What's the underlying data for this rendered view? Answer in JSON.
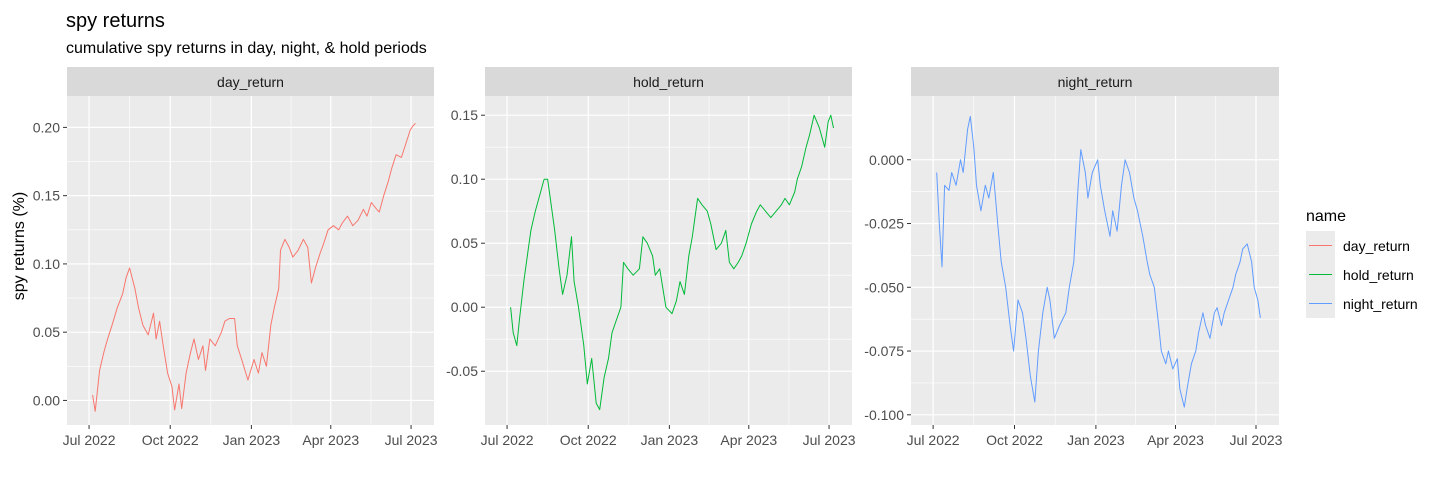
{
  "chart_data": {
    "type": "line",
    "title": "spy returns",
    "subtitle": "cumulative spy returns in day, night, & hold periods",
    "ylabel": "spy returns (%)",
    "xlabel": "",
    "x_tick_labels": [
      "Jul 2022",
      "Oct 2022",
      "Jan 2023",
      "Apr 2023",
      "Jul 2023"
    ],
    "x_tick_dates": [
      "2022-07-01",
      "2022-10-01",
      "2023-01-01",
      "2023-04-01",
      "2023-07-01"
    ],
    "x_range": [
      "2022-06-06",
      "2023-07-27"
    ],
    "grid": true,
    "legend": {
      "title": "name",
      "placement": "right",
      "entries": [
        "day_return",
        "hold_return",
        "night_return"
      ]
    },
    "colors": {
      "day_return": "#F8766D",
      "hold_return": "#00BA38",
      "night_return": "#619CFF",
      "panel_bg": "#EBEBEB",
      "strip_bg": "#D9D9D9",
      "grid": "#FFFFFF"
    },
    "panels": [
      {
        "strip": "day_return",
        "series_name": "day_return",
        "ylim": [
          -0.018,
          0.223
        ],
        "y_ticks": [
          0.0,
          0.05,
          0.1,
          0.15,
          0.2
        ],
        "y_tick_labels": [
          "0.00",
          "0.05",
          "0.10",
          "0.15",
          "0.20"
        ],
        "points": [
          [
            "2022-07-05",
            0.004
          ],
          [
            "2022-07-08",
            -0.008
          ],
          [
            "2022-07-13",
            0.022
          ],
          [
            "2022-07-18",
            0.036
          ],
          [
            "2022-07-22",
            0.045
          ],
          [
            "2022-07-27",
            0.055
          ],
          [
            "2022-08-02",
            0.068
          ],
          [
            "2022-08-08",
            0.078
          ],
          [
            "2022-08-12",
            0.09
          ],
          [
            "2022-08-16",
            0.097
          ],
          [
            "2022-08-22",
            0.082
          ],
          [
            "2022-08-26",
            0.068
          ],
          [
            "2022-08-31",
            0.055
          ],
          [
            "2022-09-06",
            0.048
          ],
          [
            "2022-09-12",
            0.064
          ],
          [
            "2022-09-15",
            0.045
          ],
          [
            "2022-09-19",
            0.058
          ],
          [
            "2022-09-23",
            0.04
          ],
          [
            "2022-09-28",
            0.02
          ],
          [
            "2022-10-03",
            0.01
          ],
          [
            "2022-10-06",
            -0.007
          ],
          [
            "2022-10-11",
            0.012
          ],
          [
            "2022-10-14",
            -0.006
          ],
          [
            "2022-10-19",
            0.02
          ],
          [
            "2022-10-24",
            0.035
          ],
          [
            "2022-10-28",
            0.045
          ],
          [
            "2022-11-02",
            0.03
          ],
          [
            "2022-11-07",
            0.04
          ],
          [
            "2022-11-10",
            0.022
          ],
          [
            "2022-11-15",
            0.045
          ],
          [
            "2022-11-21",
            0.04
          ],
          [
            "2022-11-28",
            0.05
          ],
          [
            "2022-12-02",
            0.058
          ],
          [
            "2022-12-07",
            0.06
          ],
          [
            "2022-12-13",
            0.06
          ],
          [
            "2022-12-16",
            0.04
          ],
          [
            "2022-12-21",
            0.03
          ],
          [
            "2022-12-28",
            0.015
          ],
          [
            "2023-01-04",
            0.03
          ],
          [
            "2023-01-09",
            0.02
          ],
          [
            "2023-01-13",
            0.035
          ],
          [
            "2023-01-18",
            0.025
          ],
          [
            "2023-01-23",
            0.055
          ],
          [
            "2023-01-27",
            0.068
          ],
          [
            "2023-02-01",
            0.082
          ],
          [
            "2023-02-03",
            0.11
          ],
          [
            "2023-02-08",
            0.118
          ],
          [
            "2023-02-13",
            0.112
          ],
          [
            "2023-02-17",
            0.105
          ],
          [
            "2023-02-23",
            0.11
          ],
          [
            "2023-03-01",
            0.118
          ],
          [
            "2023-03-06",
            0.112
          ],
          [
            "2023-03-10",
            0.086
          ],
          [
            "2023-03-15",
            0.098
          ],
          [
            "2023-03-20",
            0.108
          ],
          [
            "2023-03-24",
            0.115
          ],
          [
            "2023-03-29",
            0.125
          ],
          [
            "2023-04-04",
            0.128
          ],
          [
            "2023-04-10",
            0.125
          ],
          [
            "2023-04-14",
            0.13
          ],
          [
            "2023-04-20",
            0.135
          ],
          [
            "2023-04-26",
            0.128
          ],
          [
            "2023-05-02",
            0.132
          ],
          [
            "2023-05-08",
            0.14
          ],
          [
            "2023-05-12",
            0.135
          ],
          [
            "2023-05-17",
            0.145
          ],
          [
            "2023-05-23",
            0.14
          ],
          [
            "2023-05-26",
            0.138
          ],
          [
            "2023-05-31",
            0.15
          ],
          [
            "2023-06-05",
            0.16
          ],
          [
            "2023-06-09",
            0.17
          ],
          [
            "2023-06-14",
            0.18
          ],
          [
            "2023-06-20",
            0.178
          ],
          [
            "2023-06-26",
            0.19
          ],
          [
            "2023-06-30",
            0.198
          ],
          [
            "2023-07-03",
            0.201
          ],
          [
            "2023-07-06",
            0.203
          ]
        ]
      },
      {
        "strip": "hold_return",
        "series_name": "hold_return",
        "ylim": [
          -0.092,
          0.165
        ],
        "y_ticks": [
          -0.05,
          0.0,
          0.05,
          0.1,
          0.15
        ],
        "y_tick_labels": [
          "-0.05",
          "0.00",
          "0.05",
          "0.10",
          "0.15"
        ],
        "points": [
          [
            "2022-07-05",
            0.0
          ],
          [
            "2022-07-08",
            -0.02
          ],
          [
            "2022-07-12",
            -0.03
          ],
          [
            "2022-07-15",
            -0.01
          ],
          [
            "2022-07-20",
            0.02
          ],
          [
            "2022-07-25",
            0.045
          ],
          [
            "2022-07-28",
            0.06
          ],
          [
            "2022-08-02",
            0.075
          ],
          [
            "2022-08-08",
            0.09
          ],
          [
            "2022-08-12",
            0.1
          ],
          [
            "2022-08-16",
            0.1
          ],
          [
            "2022-08-19",
            0.085
          ],
          [
            "2022-08-24",
            0.06
          ],
          [
            "2022-08-29",
            0.03
          ],
          [
            "2022-09-02",
            0.01
          ],
          [
            "2022-09-07",
            0.025
          ],
          [
            "2022-09-12",
            0.055
          ],
          [
            "2022-09-15",
            0.02
          ],
          [
            "2022-09-20",
            0.0
          ],
          [
            "2022-09-26",
            -0.03
          ],
          [
            "2022-09-30",
            -0.06
          ],
          [
            "2022-10-05",
            -0.04
          ],
          [
            "2022-10-10",
            -0.075
          ],
          [
            "2022-10-14",
            -0.08
          ],
          [
            "2022-10-19",
            -0.055
          ],
          [
            "2022-10-24",
            -0.04
          ],
          [
            "2022-10-28",
            -0.02
          ],
          [
            "2022-11-02",
            -0.01
          ],
          [
            "2022-11-07",
            0.0
          ],
          [
            "2022-11-10",
            0.035
          ],
          [
            "2022-11-15",
            0.03
          ],
          [
            "2022-11-21",
            0.025
          ],
          [
            "2022-11-28",
            0.03
          ],
          [
            "2022-12-02",
            0.055
          ],
          [
            "2022-12-07",
            0.05
          ],
          [
            "2022-12-13",
            0.04
          ],
          [
            "2022-12-16",
            0.025
          ],
          [
            "2022-12-21",
            0.03
          ],
          [
            "2022-12-28",
            0.0
          ],
          [
            "2023-01-04",
            -0.005
          ],
          [
            "2023-01-09",
            0.005
          ],
          [
            "2023-01-13",
            0.02
          ],
          [
            "2023-01-18",
            0.01
          ],
          [
            "2023-01-23",
            0.04
          ],
          [
            "2023-01-27",
            0.055
          ],
          [
            "2023-02-02",
            0.085
          ],
          [
            "2023-02-07",
            0.08
          ],
          [
            "2023-02-13",
            0.075
          ],
          [
            "2023-02-17",
            0.065
          ],
          [
            "2023-02-23",
            0.045
          ],
          [
            "2023-03-01",
            0.05
          ],
          [
            "2023-03-06",
            0.06
          ],
          [
            "2023-03-10",
            0.035
          ],
          [
            "2023-03-15",
            0.03
          ],
          [
            "2023-03-20",
            0.035
          ],
          [
            "2023-03-24",
            0.04
          ],
          [
            "2023-03-29",
            0.05
          ],
          [
            "2023-04-04",
            0.065
          ],
          [
            "2023-04-10",
            0.075
          ],
          [
            "2023-04-14",
            0.08
          ],
          [
            "2023-04-20",
            0.075
          ],
          [
            "2023-04-26",
            0.07
          ],
          [
            "2023-05-02",
            0.075
          ],
          [
            "2023-05-08",
            0.08
          ],
          [
            "2023-05-12",
            0.085
          ],
          [
            "2023-05-17",
            0.08
          ],
          [
            "2023-05-23",
            0.09
          ],
          [
            "2023-05-26",
            0.1
          ],
          [
            "2023-05-31",
            0.11
          ],
          [
            "2023-06-05",
            0.125
          ],
          [
            "2023-06-09",
            0.135
          ],
          [
            "2023-06-14",
            0.15
          ],
          [
            "2023-06-20",
            0.14
          ],
          [
            "2023-06-26",
            0.125
          ],
          [
            "2023-06-30",
            0.145
          ],
          [
            "2023-07-03",
            0.15
          ],
          [
            "2023-07-06",
            0.14
          ]
        ]
      },
      {
        "strip": "night_return",
        "series_name": "night_return",
        "ylim": [
          -0.104,
          0.025
        ],
        "y_ticks": [
          -0.1,
          -0.075,
          -0.05,
          -0.025,
          0.0
        ],
        "y_tick_labels": [
          "-0.100",
          "-0.075",
          "-0.050",
          "-0.025",
          "0.000"
        ],
        "points": [
          [
            "2022-07-05",
            -0.005
          ],
          [
            "2022-07-08",
            -0.025
          ],
          [
            "2022-07-11",
            -0.042
          ],
          [
            "2022-07-14",
            -0.01
          ],
          [
            "2022-07-19",
            -0.012
          ],
          [
            "2022-07-22",
            -0.005
          ],
          [
            "2022-07-27",
            -0.01
          ],
          [
            "2022-08-01",
            0.0
          ],
          [
            "2022-08-04",
            -0.005
          ],
          [
            "2022-08-09",
            0.012
          ],
          [
            "2022-08-12",
            0.017
          ],
          [
            "2022-08-16",
            0.005
          ],
          [
            "2022-08-19",
            -0.01
          ],
          [
            "2022-08-24",
            -0.02
          ],
          [
            "2022-08-29",
            -0.01
          ],
          [
            "2022-09-02",
            -0.015
          ],
          [
            "2022-09-07",
            -0.005
          ],
          [
            "2022-09-12",
            -0.025
          ],
          [
            "2022-09-16",
            -0.04
          ],
          [
            "2022-09-21",
            -0.05
          ],
          [
            "2022-09-26",
            -0.065
          ],
          [
            "2022-09-30",
            -0.075
          ],
          [
            "2022-10-05",
            -0.055
          ],
          [
            "2022-10-10",
            -0.06
          ],
          [
            "2022-10-14",
            -0.07
          ],
          [
            "2022-10-19",
            -0.085
          ],
          [
            "2022-10-24",
            -0.095
          ],
          [
            "2022-10-28",
            -0.075
          ],
          [
            "2022-11-02",
            -0.06
          ],
          [
            "2022-11-07",
            -0.05
          ],
          [
            "2022-11-10",
            -0.055
          ],
          [
            "2022-11-15",
            -0.07
          ],
          [
            "2022-11-21",
            -0.065
          ],
          [
            "2022-11-28",
            -0.06
          ],
          [
            "2022-12-02",
            -0.05
          ],
          [
            "2022-12-07",
            -0.04
          ],
          [
            "2022-12-12",
            -0.01
          ],
          [
            "2022-12-15",
            0.004
          ],
          [
            "2022-12-20",
            -0.005
          ],
          [
            "2022-12-23",
            -0.015
          ],
          [
            "2022-12-28",
            -0.005
          ],
          [
            "2023-01-03",
            0.0
          ],
          [
            "2023-01-06",
            -0.01
          ],
          [
            "2023-01-11",
            -0.02
          ],
          [
            "2023-01-17",
            -0.03
          ],
          [
            "2023-01-20",
            -0.02
          ],
          [
            "2023-01-25",
            -0.028
          ],
          [
            "2023-01-30",
            -0.01
          ],
          [
            "2023-02-03",
            0.0
          ],
          [
            "2023-02-08",
            -0.005
          ],
          [
            "2023-02-13",
            -0.015
          ],
          [
            "2023-02-17",
            -0.02
          ],
          [
            "2023-02-23",
            -0.03
          ],
          [
            "2023-02-28",
            -0.04
          ],
          [
            "2023-03-03",
            -0.045
          ],
          [
            "2023-03-08",
            -0.05
          ],
          [
            "2023-03-13",
            -0.065
          ],
          [
            "2023-03-16",
            -0.075
          ],
          [
            "2023-03-21",
            -0.08
          ],
          [
            "2023-03-24",
            -0.075
          ],
          [
            "2023-03-29",
            -0.082
          ],
          [
            "2023-04-03",
            -0.078
          ],
          [
            "2023-04-06",
            -0.09
          ],
          [
            "2023-04-11",
            -0.097
          ],
          [
            "2023-04-14",
            -0.09
          ],
          [
            "2023-04-19",
            -0.08
          ],
          [
            "2023-04-24",
            -0.075
          ],
          [
            "2023-04-27",
            -0.068
          ],
          [
            "2023-05-02",
            -0.06
          ],
          [
            "2023-05-05",
            -0.065
          ],
          [
            "2023-05-10",
            -0.07
          ],
          [
            "2023-05-15",
            -0.06
          ],
          [
            "2023-05-18",
            -0.058
          ],
          [
            "2023-05-23",
            -0.065
          ],
          [
            "2023-05-26",
            -0.06
          ],
          [
            "2023-05-31",
            -0.055
          ],
          [
            "2023-06-05",
            -0.05
          ],
          [
            "2023-06-08",
            -0.045
          ],
          [
            "2023-06-13",
            -0.04
          ],
          [
            "2023-06-16",
            -0.035
          ],
          [
            "2023-06-21",
            -0.033
          ],
          [
            "2023-06-26",
            -0.04
          ],
          [
            "2023-06-29",
            -0.05
          ],
          [
            "2023-07-03",
            -0.055
          ],
          [
            "2023-07-06",
            -0.062
          ]
        ]
      }
    ]
  }
}
